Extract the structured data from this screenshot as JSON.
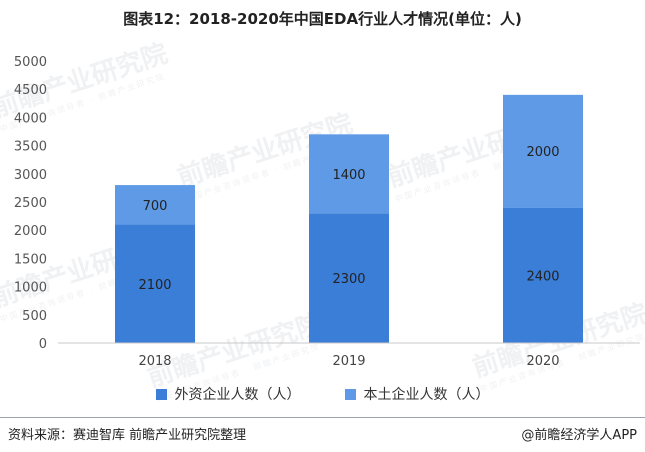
{
  "title": "图表12：2018-2020年中国EDA行业人才情况(单位：人)",
  "chart_data": {
    "type": "bar",
    "stacked": true,
    "categories": [
      "2018",
      "2019",
      "2020"
    ],
    "series": [
      {
        "name": "外资企业人数（人）",
        "values": [
          2100,
          2300,
          2400
        ],
        "color": "#3b7ed8"
      },
      {
        "name": "本土企业人数（人）",
        "values": [
          700,
          1400,
          2000
        ],
        "color": "#5e9ae6"
      }
    ],
    "ylim": [
      0,
      5000
    ],
    "yticks": [
      0,
      500,
      1000,
      1500,
      2000,
      2500,
      3000,
      3500,
      4000,
      4500,
      5000
    ],
    "grid": false,
    "legend_position": "bottom"
  },
  "legend": [
    {
      "label": "外资企业人数（人）",
      "color": "#3b7ed8"
    },
    {
      "label": "本土企业人数（人）",
      "color": "#5e9ae6"
    }
  ],
  "footer": {
    "source": "资料来源：赛迪智库 前瞻产业研究院整理",
    "credit": "@前瞻经济学人APP"
  },
  "watermark": {
    "text": "前瞻产业研究院",
    "sub": "中国产业咨询领导者 · 前瞻产业研究院"
  }
}
